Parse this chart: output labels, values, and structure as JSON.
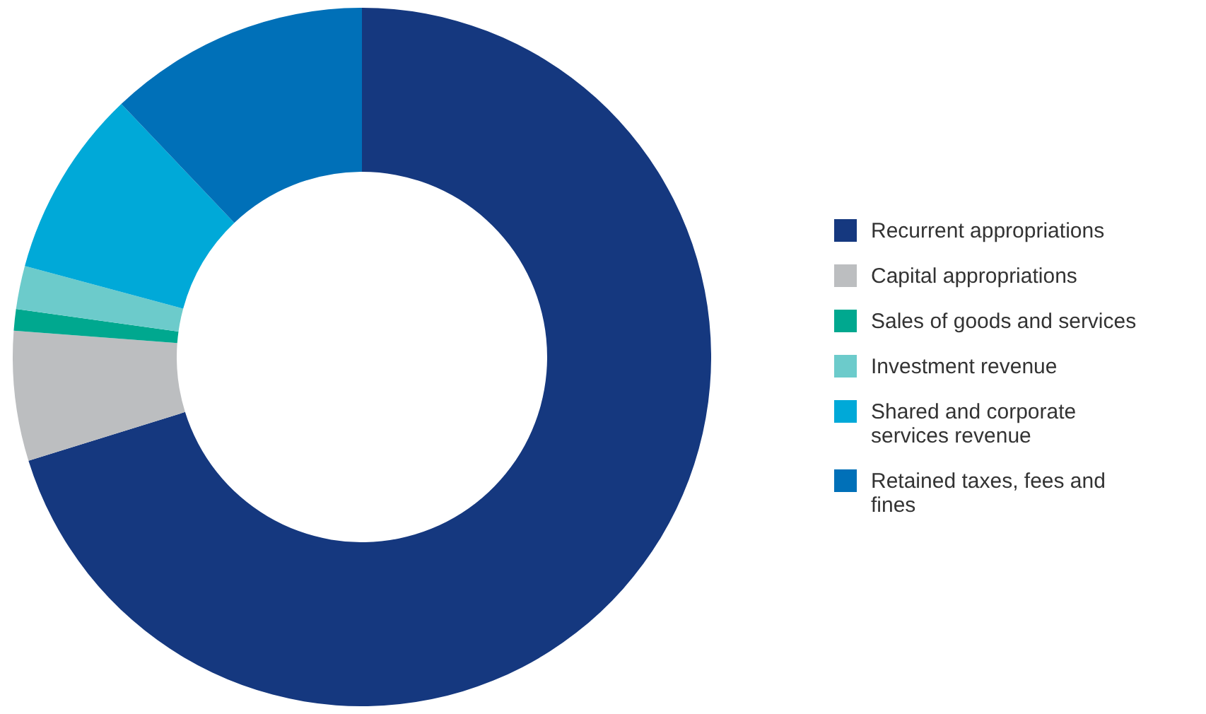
{
  "chart_data": {
    "type": "donut",
    "categories": [
      "Recurrent appropriations",
      "Capital appropriations",
      "Sales of goods and services",
      "Investment revenue",
      "Shared and corporate services revenue",
      "Retained taxes, fees and fines"
    ],
    "values": [
      70.2,
      6,
      1,
      2,
      8.7,
      12.1
    ],
    "colors": [
      "#15387f",
      "#bcbec0",
      "#00a88f",
      "#6ccbcb",
      "#00a9d8",
      "#0070b8"
    ],
    "legend": "right"
  }
}
